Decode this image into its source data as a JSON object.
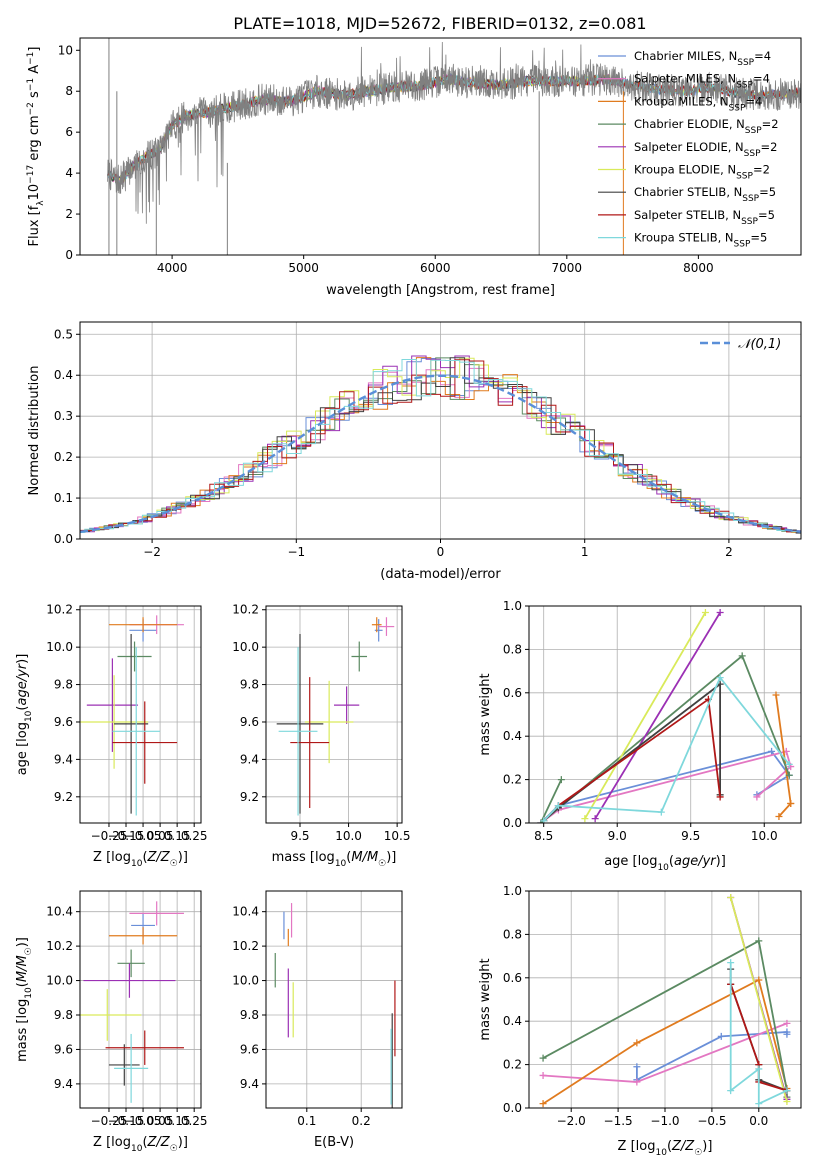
{
  "figure_title": "PLATE=1018, MJD=52672, FIBERID=0132, z=0.081",
  "colors": {
    "Chabrier MILES": "#6a8fd8",
    "Salpeter MILES": "#e377c2",
    "Kroupa MILES": "#e07b1f",
    "Chabrier ELODIE": "#5b8a62",
    "Salpeter ELODIE": "#9b30b4",
    "Kroupa ELODIE": "#d9ea5a",
    "Chabrier STELIB": "#404040",
    "Salpeter STELIB": "#b01818",
    "Kroupa STELIB": "#7fd8dc",
    "data": "#808080",
    "gaussian": "#5a8fd8"
  },
  "chart_data": [
    {
      "panel": "spectrum",
      "type": "line",
      "title": "",
      "xlabel": "wavelength [Angstrom, rest frame]",
      "ylabel": "Flux [f_λ10^-17 erg cm^-2 s^-1 A^-1]",
      "xlim": [
        3300,
        8780
      ],
      "ylim": [
        0,
        10.6
      ],
      "xticks": [
        4000,
        5000,
        6000,
        7000,
        8000
      ],
      "yticks": [
        0,
        2,
        4,
        6,
        8,
        10
      ],
      "legend_position": "right",
      "series": [
        {
          "name": "Chabrier MILES, N_SSP=4",
          "key": "Chabrier MILES"
        },
        {
          "name": "Salpeter MILES, N_SSP=4",
          "key": "Salpeter MILES"
        },
        {
          "name": "Kroupa MILES, N_SSP=4",
          "key": "Kroupa MILES"
        },
        {
          "name": "Chabrier ELODIE, N_SSP=2",
          "key": "Chabrier ELODIE"
        },
        {
          "name": "Salpeter ELODIE, N_SSP=2",
          "key": "Salpeter ELODIE"
        },
        {
          "name": "Kroupa ELODIE, N_SSP=2",
          "key": "Kroupa ELODIE"
        },
        {
          "name": "Chabrier STELIB, N_SSP=5",
          "key": "Chabrier STELIB"
        },
        {
          "name": "Salpeter STELIB, N_SSP=5",
          "key": "Salpeter STELIB"
        },
        {
          "name": "Kroupa STELIB, N_SSP=5",
          "key": "Kroupa STELIB"
        }
      ],
      "continuum": {
        "x": [
          3510,
          3600,
          3700,
          3800,
          3900,
          4000,
          4100,
          4300,
          4500,
          4700,
          4900,
          5100,
          5300,
          5500,
          5700,
          5900,
          6100,
          6300,
          6500,
          6700,
          6900,
          7100,
          7300,
          7500,
          7700,
          7900,
          8100,
          8300,
          8500,
          8780
        ],
        "y": [
          4.0,
          3.6,
          4.3,
          4.8,
          5.1,
          6.3,
          6.8,
          7.0,
          7.3,
          7.6,
          7.5,
          8.0,
          7.8,
          8.0,
          8.2,
          8.3,
          8.6,
          8.4,
          8.3,
          8.5,
          8.5,
          8.5,
          8.6,
          8.3,
          8.1,
          8.0,
          8.2,
          7.9,
          7.8,
          7.9
        ]
      }
    },
    {
      "panel": "residuals",
      "type": "line",
      "xlabel": "(data-model)/error",
      "ylabel": "Normed distribution",
      "xlim": [
        -2.5,
        2.5
      ],
      "ylim": [
        0,
        0.53
      ],
      "xticks": [
        -2,
        -1,
        0,
        1,
        2
      ],
      "yticks": [
        0.0,
        0.1,
        0.2,
        0.3,
        0.4,
        0.5
      ],
      "grid": true,
      "legend": "𝒩(0,1)",
      "legend_position": "top-right"
    },
    {
      "panel": "age_vs_Z",
      "type": "scatter",
      "xlabel": "Z [log10(Z/Z☉)]",
      "ylabel": "age [log10(age/yr)]",
      "xlim": [
        -0.42,
        0.29
      ],
      "ylim": [
        9.06,
        10.22
      ],
      "xticks": [
        -0.25,
        -0.15,
        -0.05,
        0.05,
        0.15,
        0.25
      ],
      "xtick_labels": [
        "−0.25",
        "−0.15",
        "−0.05",
        "0.05",
        "0.15",
        "0.25"
      ],
      "yticks": [
        9.2,
        9.4,
        9.6,
        9.8,
        10.0,
        10.2
      ],
      "grid": true,
      "points": [
        {
          "key": "Chabrier MILES",
          "x": -0.05,
          "y": 10.09,
          "xerr": 0.08,
          "yerr": 0.06
        },
        {
          "key": "Salpeter MILES",
          "x": 0.03,
          "y": 10.12,
          "xerr": 0.16,
          "yerr": 0.05
        },
        {
          "key": "Kroupa MILES",
          "x": -0.05,
          "y": 10.12,
          "xerr": 0.2,
          "yerr": 0.04
        },
        {
          "key": "Chabrier ELODIE",
          "x": -0.1,
          "y": 9.95,
          "xerr": 0.1,
          "yerr": 0.08
        },
        {
          "key": "Salpeter ELODIE",
          "x": -0.23,
          "y": 9.69,
          "xerr": 0.15,
          "yerr": 0.25
        },
        {
          "key": "Kroupa ELODIE",
          "x": -0.22,
          "y": 9.6,
          "xerr": 0.2,
          "yerr": 0.25
        },
        {
          "key": "Chabrier STELIB",
          "x": -0.12,
          "y": 9.59,
          "xerr": 0.1,
          "yerr": 0.48
        },
        {
          "key": "Salpeter STELIB",
          "x": -0.04,
          "y": 9.49,
          "xerr": 0.19,
          "yerr": 0.22
        },
        {
          "key": "Kroupa STELIB",
          "x": -0.09,
          "y": 9.55,
          "xerr": 0.14,
          "yerr": 0.45
        }
      ]
    },
    {
      "panel": "age_vs_mass",
      "type": "scatter",
      "xlabel": "mass [log10(M/M☉)]",
      "ylabel": "",
      "xlim": [
        9.15,
        10.55
      ],
      "ylim": [
        9.06,
        10.22
      ],
      "xticks": [
        9.5,
        10.0,
        10.5
      ],
      "xtick_labels": [
        "9.5",
        "10.0",
        "10.5"
      ],
      "yticks": [
        9.2,
        9.4,
        9.6,
        9.8,
        10.0,
        10.2
      ],
      "grid": true,
      "points": [
        {
          "key": "Chabrier MILES",
          "x": 10.31,
          "y": 10.09,
          "xerr": 0.04,
          "yerr": 0.06
        },
        {
          "key": "Salpeter MILES",
          "x": 10.39,
          "y": 10.11,
          "xerr": 0.08,
          "yerr": 0.05
        },
        {
          "key": "Kroupa MILES",
          "x": 10.29,
          "y": 10.12,
          "xerr": 0.05,
          "yerr": 0.04
        },
        {
          "key": "Chabrier ELODIE",
          "x": 10.11,
          "y": 9.95,
          "xerr": 0.08,
          "yerr": 0.08
        },
        {
          "key": "Salpeter ELODIE",
          "x": 9.98,
          "y": 9.69,
          "xerr": 0.13,
          "yerr": 0.1
        },
        {
          "key": "Kroupa ELODIE",
          "x": 9.8,
          "y": 9.6,
          "xerr": 0.25,
          "yerr": 0.22
        },
        {
          "key": "Chabrier STELIB",
          "x": 9.5,
          "y": 9.59,
          "xerr": 0.24,
          "yerr": 0.48
        },
        {
          "key": "Salpeter STELIB",
          "x": 9.6,
          "y": 9.49,
          "xerr": 0.2,
          "yerr": 0.35
        },
        {
          "key": "Kroupa STELIB",
          "x": 9.48,
          "y": 9.55,
          "xerr": 0.2,
          "yerr": 0.45
        }
      ]
    },
    {
      "panel": "mass_weight_vs_age",
      "type": "line",
      "xlabel": "age [log10(age/yr)]",
      "ylabel": "mass weight",
      "xlim": [
        8.4,
        10.25
      ],
      "ylim": [
        0,
        1.0
      ],
      "xticks": [
        8.5,
        9.0,
        9.5,
        10.0
      ],
      "xtick_labels": [
        "8.5",
        "9.0",
        "9.5",
        "10.0"
      ],
      "yticks": [
        0.0,
        0.2,
        0.4,
        0.6,
        0.8,
        1.0
      ],
      "ytick_labels": [
        "0.0",
        "0.2",
        "0.4",
        "0.6",
        "0.8",
        "1.0"
      ],
      "grid": true,
      "series": [
        {
          "key": "Chabrier MILES",
          "x": [
            8.48,
            8.6,
            10.05,
            10.17,
            9.95
          ],
          "y": [
            0.0,
            0.08,
            0.33,
            0.22,
            0.13
          ]
        },
        {
          "key": "Salpeter MILES",
          "x": [
            8.48,
            8.6,
            10.15,
            10.18,
            9.95
          ],
          "y": [
            0.0,
            0.06,
            0.33,
            0.26,
            0.12
          ]
        },
        {
          "key": "Kroupa MILES",
          "x": [
            10.08,
            10.18,
            10.1,
            10.18
          ],
          "y": [
            0.59,
            0.09,
            0.03,
            0.09
          ]
        },
        {
          "key": "Chabrier ELODIE",
          "x": [
            8.62,
            8.48,
            9.85,
            10.17
          ],
          "y": [
            0.2,
            0.0,
            0.77,
            0.22
          ]
        },
        {
          "key": "Salpeter ELODIE",
          "x": [
            8.85,
            9.7
          ],
          "y": [
            0.02,
            0.97
          ]
        },
        {
          "key": "Kroupa ELODIE",
          "x": [
            8.78,
            9.6
          ],
          "y": [
            0.02,
            0.97
          ]
        },
        {
          "key": "Chabrier STELIB",
          "x": [
            8.5,
            8.6,
            9.7,
            9.7
          ],
          "y": [
            0.01,
            0.07,
            0.64,
            0.13
          ]
        },
        {
          "key": "Salpeter STELIB",
          "x": [
            8.5,
            8.6,
            9.62,
            9.7
          ],
          "y": [
            0.01,
            0.08,
            0.57,
            0.12
          ]
        },
        {
          "key": "Kroupa STELIB",
          "x": [
            8.5,
            8.6,
            9.3,
            9.7,
            10.17
          ],
          "y": [
            0.01,
            0.08,
            0.05,
            0.67,
            0.27
          ]
        }
      ]
    },
    {
      "panel": "mass_vs_Z",
      "type": "scatter",
      "xlabel": "Z [log10(Z/Z☉)]",
      "ylabel": "mass [log10(M/M☉)]",
      "xlim": [
        -0.42,
        0.29
      ],
      "ylim": [
        9.26,
        10.52
      ],
      "xticks": [
        -0.25,
        -0.15,
        -0.05,
        0.05,
        0.15,
        0.25
      ],
      "xtick_labels": [
        "−0.25",
        "−0.15",
        "−0.05",
        "0.05",
        "0.15",
        "0.25"
      ],
      "yticks": [
        9.4,
        9.6,
        9.8,
        10.0,
        10.2,
        10.4
      ],
      "grid": true,
      "points": [
        {
          "key": "Chabrier MILES",
          "x": -0.05,
          "y": 10.32,
          "xerr": 0.07,
          "yerr": 0.07
        },
        {
          "key": "Salpeter MILES",
          "x": 0.03,
          "y": 10.39,
          "xerr": 0.16,
          "yerr": 0.07
        },
        {
          "key": "Kroupa MILES",
          "x": -0.05,
          "y": 10.26,
          "xerr": 0.2,
          "yerr": 0.05
        },
        {
          "key": "Chabrier ELODIE",
          "x": -0.12,
          "y": 10.1,
          "xerr": 0.08,
          "yerr": 0.08
        },
        {
          "key": "Salpeter ELODIE",
          "x": -0.13,
          "y": 10.0,
          "xerr": 0.27,
          "yerr": 0.1
        },
        {
          "key": "Kroupa ELODIE",
          "x": -0.26,
          "y": 9.8,
          "xerr": 0.2,
          "yerr": 0.15
        },
        {
          "key": "Chabrier STELIB",
          "x": -0.16,
          "y": 9.51,
          "xerr": 0.09,
          "yerr": 0.12
        },
        {
          "key": "Salpeter STELIB",
          "x": -0.04,
          "y": 9.61,
          "xerr": 0.23,
          "yerr": 0.1
        },
        {
          "key": "Kroupa STELIB",
          "x": -0.12,
          "y": 9.49,
          "xerr": 0.1,
          "yerr": 0.2
        }
      ]
    },
    {
      "panel": "mass_vs_EBV",
      "type": "scatter",
      "xlabel": "E(B-V)",
      "ylabel": "",
      "xlim": [
        0.025,
        0.275
      ],
      "ylim": [
        9.26,
        10.52
      ],
      "xticks": [
        0.1,
        0.2
      ],
      "xtick_labels": [
        "0.1",
        "0.2"
      ],
      "yticks": [
        9.4,
        9.6,
        9.8,
        10.0,
        10.2,
        10.4
      ],
      "grid": true,
      "points": [
        {
          "key": "Chabrier MILES",
          "x": 0.058,
          "y": 10.32,
          "xerr": 0,
          "yerr": 0.08
        },
        {
          "key": "Salpeter MILES",
          "x": 0.072,
          "y": 10.35,
          "xerr": 0,
          "yerr": 0.1
        },
        {
          "key": "Kroupa MILES",
          "x": 0.066,
          "y": 10.25,
          "xerr": 0,
          "yerr": 0.05
        },
        {
          "key": "Chabrier ELODIE",
          "x": 0.042,
          "y": 10.06,
          "xerr": 0,
          "yerr": 0.1
        },
        {
          "key": "Salpeter ELODIE",
          "x": 0.066,
          "y": 9.87,
          "xerr": 0,
          "yerr": 0.2
        },
        {
          "key": "Kroupa ELODIE",
          "x": 0.075,
          "y": 9.83,
          "xerr": 0,
          "yerr": 0.16
        },
        {
          "key": "Chabrier STELIB",
          "x": 0.257,
          "y": 9.53,
          "xerr": 0,
          "yerr": 0.28
        },
        {
          "key": "Salpeter STELIB",
          "x": 0.262,
          "y": 9.78,
          "xerr": 0,
          "yerr": 0.22
        },
        {
          "key": "Kroupa STELIB",
          "x": 0.255,
          "y": 9.5,
          "xerr": 0,
          "yerr": 0.22
        }
      ]
    },
    {
      "panel": "mass_weight_vs_Z",
      "type": "line",
      "xlabel": "Z [log10(Z/Z☉)]",
      "ylabel": "mass weight",
      "xlim": [
        -2.45,
        0.45
      ],
      "ylim": [
        0,
        1.0
      ],
      "xticks": [
        -2.0,
        -1.5,
        -1.0,
        -0.5,
        0.0
      ],
      "xtick_labels": [
        "−2.0",
        "−1.5",
        "−1.0",
        "−0.5",
        "0.0"
      ],
      "yticks": [
        0.0,
        0.2,
        0.4,
        0.6,
        0.8,
        1.0
      ],
      "ytick_labels": [
        "0.0",
        "0.2",
        "0.4",
        "0.6",
        "0.8",
        "1.0"
      ],
      "grid": true,
      "series": [
        {
          "key": "Chabrier MILES",
          "x": [
            -1.3,
            -1.3,
            -0.4,
            0.3,
            0.3
          ],
          "y": [
            0.19,
            0.13,
            0.33,
            0.35,
            0.34
          ]
        },
        {
          "key": "Salpeter MILES",
          "x": [
            -2.3,
            -1.3,
            0.3
          ],
          "y": [
            0.15,
            0.12,
            0.39
          ]
        },
        {
          "key": "Kroupa MILES",
          "x": [
            -2.3,
            -1.3,
            0.0,
            0.3
          ],
          "y": [
            0.02,
            0.3,
            0.59,
            0.09
          ]
        },
        {
          "key": "Chabrier ELODIE",
          "x": [
            -2.3,
            0.0,
            0.3,
            0.3
          ],
          "y": [
            0.23,
            0.77,
            0.08,
            0.05
          ]
        },
        {
          "key": "Salpeter ELODIE",
          "x": [
            -0.3,
            0.3
          ],
          "y": [
            0.97,
            0.04
          ]
        },
        {
          "key": "Kroupa ELODIE",
          "x": [
            -0.3,
            0.3
          ],
          "y": [
            0.97,
            0.03
          ]
        },
        {
          "key": "Chabrier STELIB",
          "x": [
            -0.3,
            -0.3,
            0.0,
            0.0,
            0.3
          ],
          "y": [
            0.64,
            0.57,
            0.2,
            0.13,
            0.08
          ]
        },
        {
          "key": "Salpeter STELIB",
          "x": [
            -0.3,
            0.0,
            0.0,
            0.3
          ],
          "y": [
            0.57,
            0.2,
            0.12,
            0.08
          ]
        },
        {
          "key": "Kroupa STELIB",
          "x": [
            -0.3,
            -0.3,
            0.0,
            0.0,
            0.3
          ],
          "y": [
            0.67,
            0.08,
            0.18,
            0.02,
            0.08
          ]
        }
      ]
    }
  ]
}
